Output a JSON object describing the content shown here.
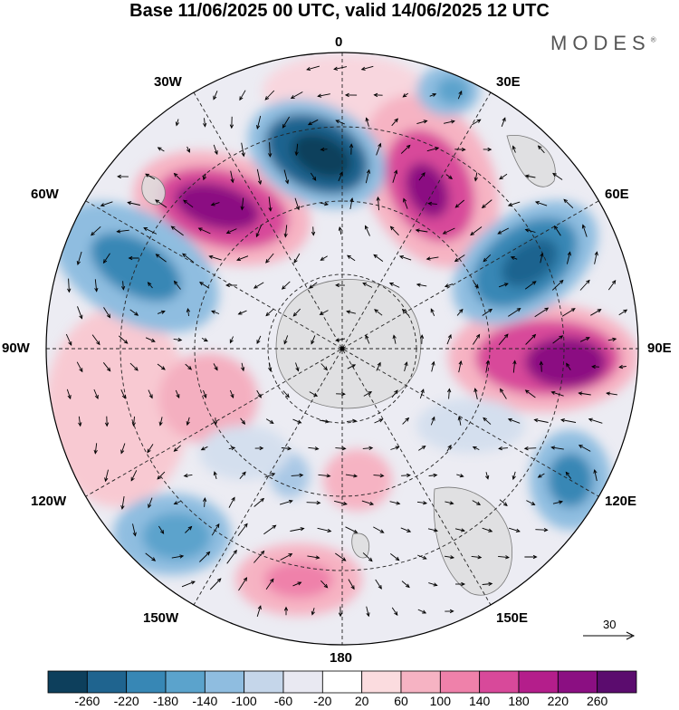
{
  "title": "Base 11/06/2025 00 UTC, valid 14/06/2025 12 UTC",
  "brand": "MODES",
  "brand_mark": "®",
  "longitude_labels": {
    "lon_0": "0",
    "lon_30e": "30E",
    "lon_60e": "60E",
    "lon_90e": "90E",
    "lon_120e": "120E",
    "lon_150e": "150E",
    "lon_180": "180",
    "lon_150w": "150W",
    "lon_120w": "120W",
    "lon_90w": "90W",
    "lon_60w": "60W",
    "lon_30w": "30W"
  },
  "reference_vector": {
    "value": "30"
  },
  "colorbar": {
    "colors": [
      "#0d3f5c",
      "#1f648f",
      "#3787b5",
      "#5ba3cc",
      "#8fbde0",
      "#c5d6ea",
      "#e9e9f2",
      "#ffffff",
      "#fbdcdf",
      "#f6b3c3",
      "#ef81aa",
      "#d8499a",
      "#b41e8b",
      "#8b0f82",
      "#5b0c6e"
    ],
    "ticks": [
      "-260",
      "-220",
      "-180",
      "-140",
      "-100",
      "-60",
      "-20",
      "20",
      "60",
      "100",
      "140",
      "180",
      "220",
      "260"
    ]
  }
}
